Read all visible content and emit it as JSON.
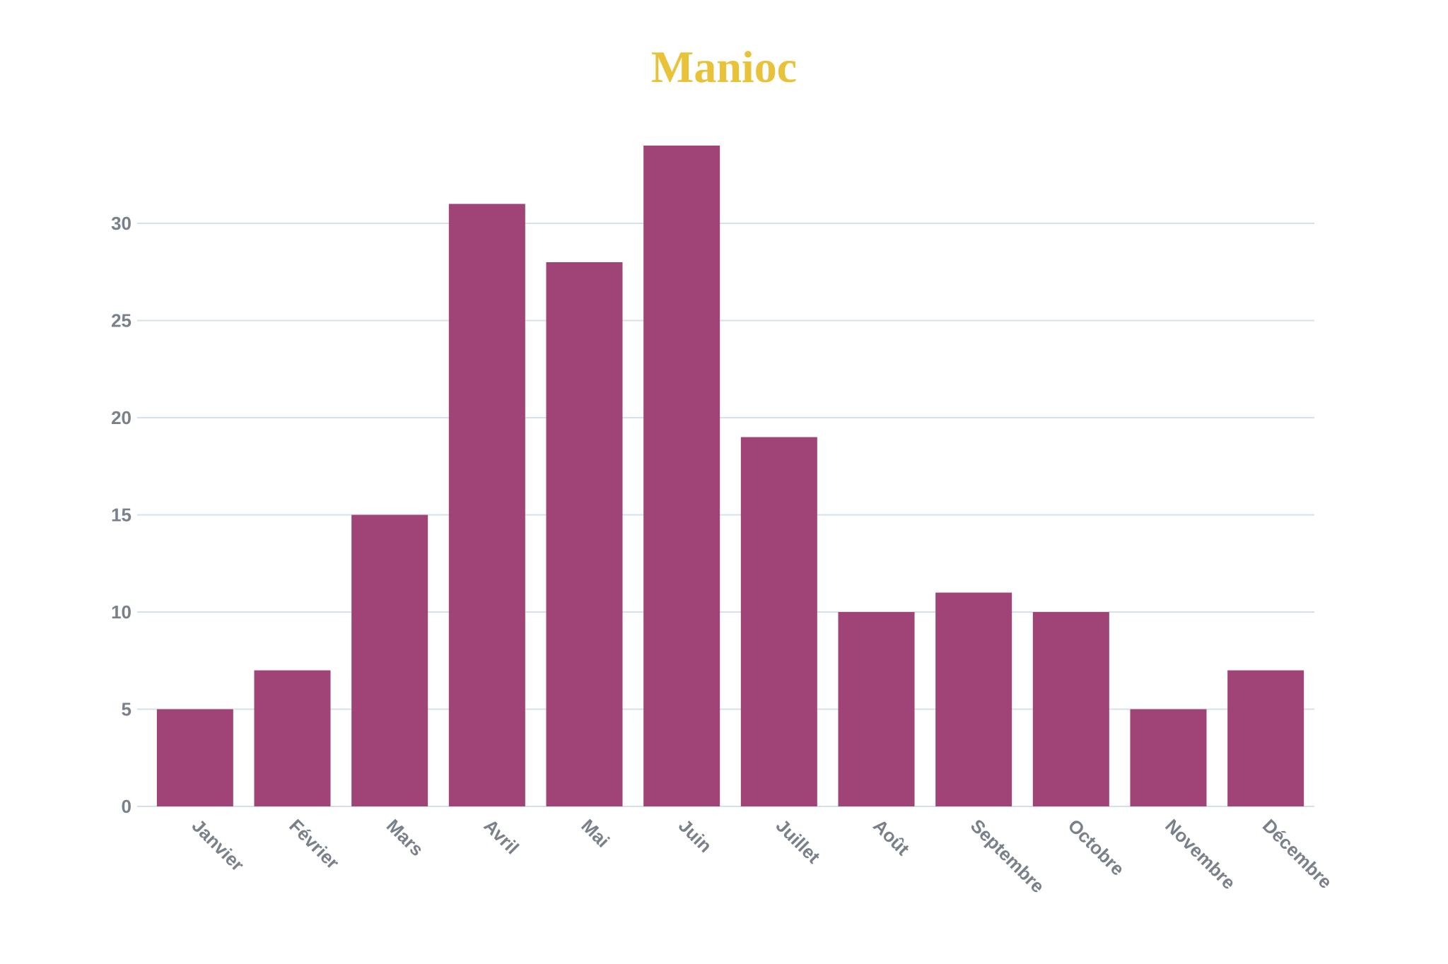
{
  "chart_data": {
    "type": "bar",
    "title": "Manioc",
    "xlabel": "",
    "ylabel": "",
    "categories": [
      "Janvier",
      "Février",
      "Mars",
      "Avril",
      "Mai",
      "Juin",
      "Juillet",
      "Août",
      "Septembre",
      "Octobre",
      "Novembre",
      "Décembre"
    ],
    "values": [
      5,
      7,
      15,
      31,
      28,
      34,
      19,
      10,
      11,
      10,
      5,
      7
    ],
    "ylim": [
      0,
      34
    ],
    "yticks": [
      0,
      5,
      10,
      15,
      20,
      25,
      30
    ],
    "grid": true,
    "legend": "none",
    "colors": {
      "bar": "#a04377",
      "title": "#e8c33a",
      "grid": "#d6e0ea",
      "tick_text": "#7a808a"
    }
  }
}
